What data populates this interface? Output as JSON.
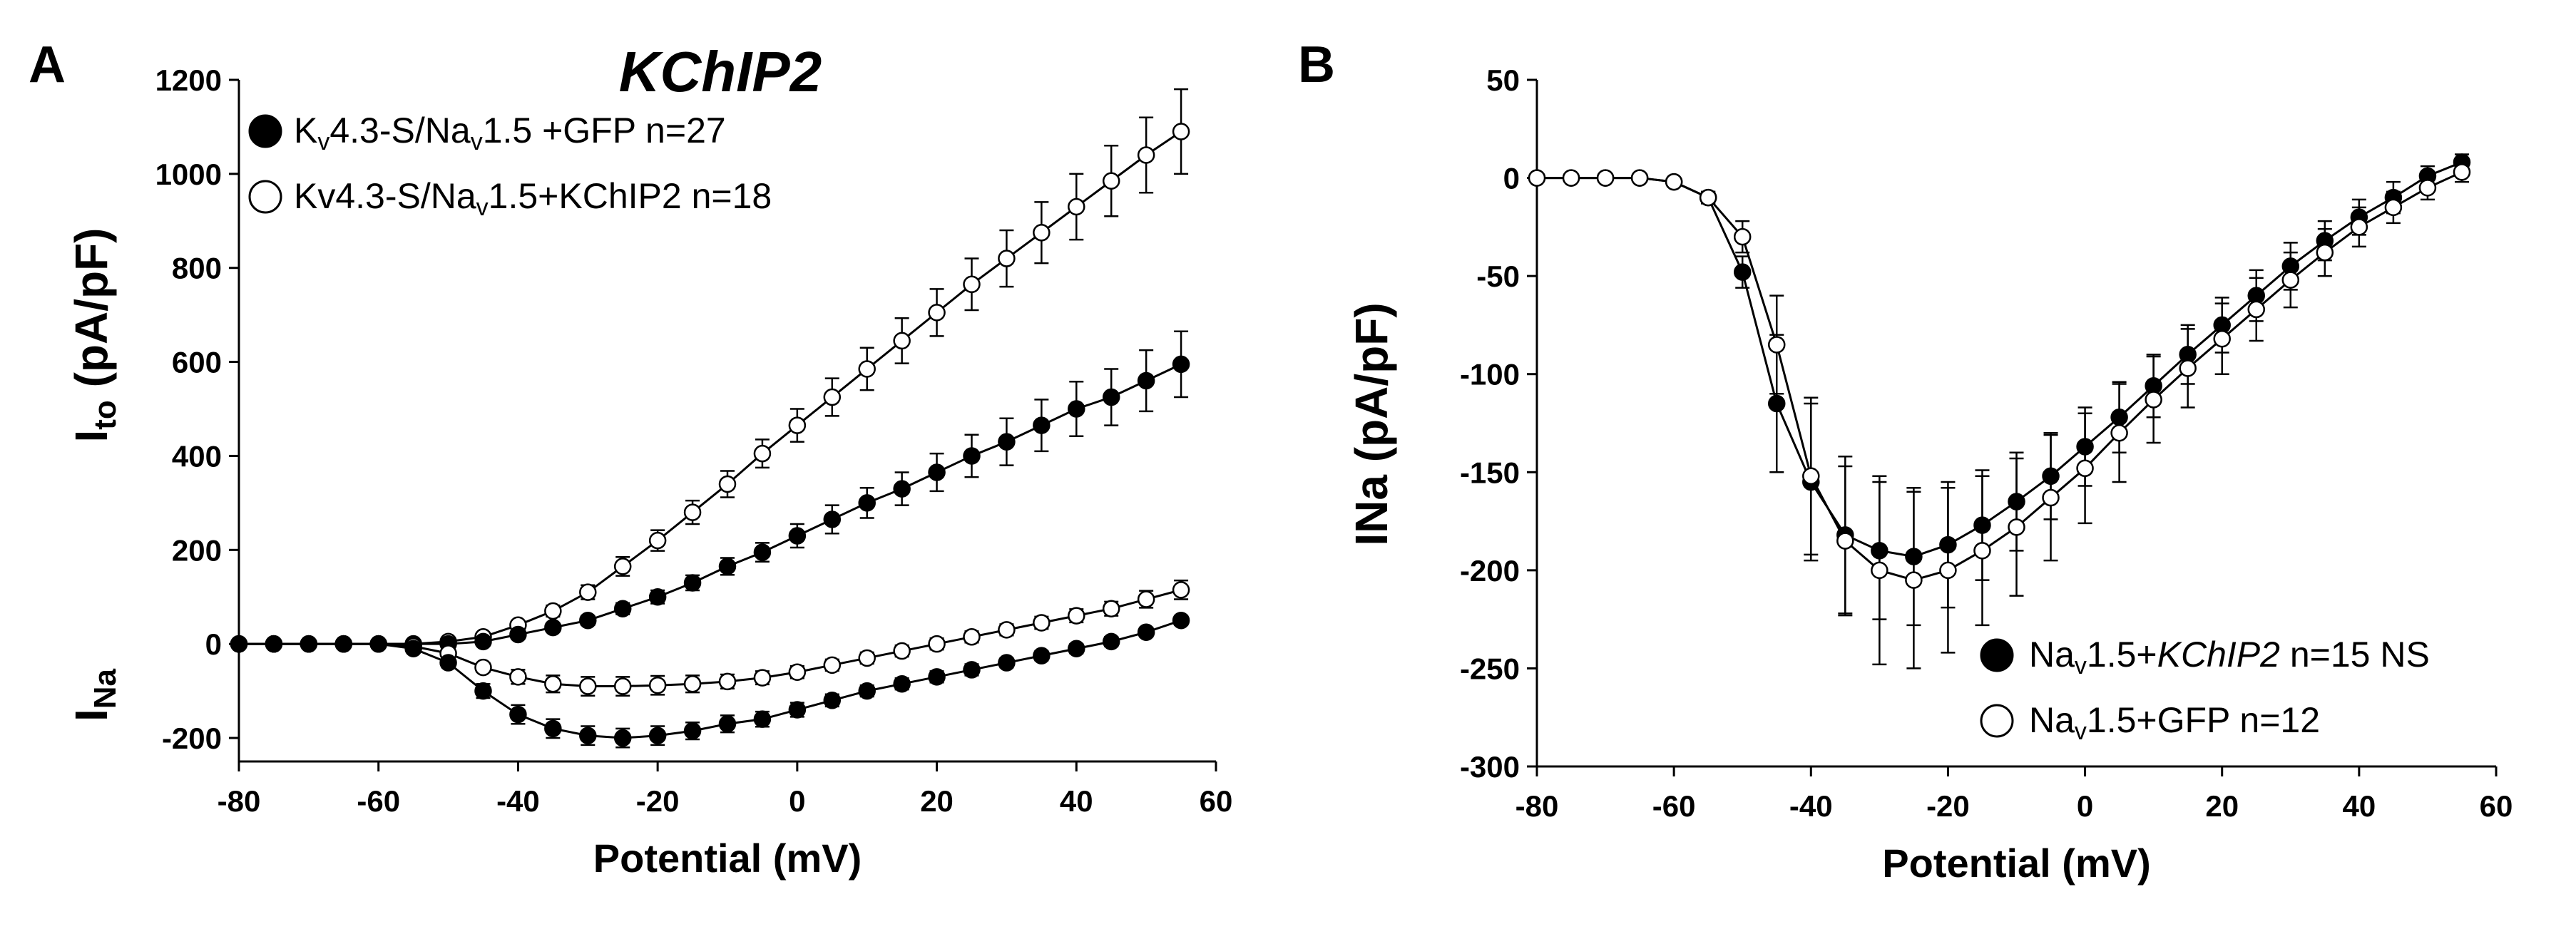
{
  "chart_data": [
    {
      "panel_label": "A",
      "type": "line",
      "title": "KChIP2",
      "xlabel": "Potential (mV)",
      "ylabel_main": "I",
      "ylabel_main_sub": "to",
      "ylabel_main_rest": " (pA/pF)",
      "ylabel_lower": "I",
      "ylabel_lower_sub": "Na",
      "xlim": [
        -80,
        60
      ],
      "ylim": [
        -250,
        1200
      ],
      "xticks": [
        -80,
        -60,
        -40,
        -20,
        0,
        20,
        40,
        60
      ],
      "yticks": [
        -200,
        0,
        200,
        400,
        600,
        800,
        1000,
        1200
      ],
      "legend": [
        {
          "marker": "filled",
          "text_pre": "K",
          "sub1": "v",
          "text_mid": "4.3-S/Na",
          "sub2": "v",
          "text_post": "1.5 +GFP n=27"
        },
        {
          "marker": "open",
          "text_pre": "Kv4.3-S/Na",
          "sub1": "v",
          "text_mid": "1.5+KChIP2 n=18",
          "sub2": "",
          "text_post": ""
        }
      ],
      "series": [
        {
          "id": "a-ito-kchip2",
          "marker": "open",
          "x": [
            -80,
            -75,
            -70,
            -65,
            -60,
            -55,
            -50,
            -45,
            -40,
            -35,
            -30,
            -25,
            -20,
            -15,
            -10,
            -5,
            0,
            5,
            10,
            15,
            20,
            25,
            30,
            35,
            40,
            45,
            50,
            55
          ],
          "y": [
            0,
            0,
            0,
            0,
            0,
            0,
            5,
            15,
            40,
            70,
            110,
            165,
            220,
            280,
            340,
            405,
            465,
            525,
            585,
            645,
            705,
            765,
            820,
            875,
            930,
            985,
            1040,
            1090
          ],
          "err": [
            0,
            0,
            0,
            0,
            0,
            0,
            4,
            6,
            8,
            12,
            15,
            20,
            22,
            25,
            28,
            30,
            35,
            40,
            45,
            48,
            50,
            55,
            60,
            65,
            70,
            75,
            80,
            90
          ]
        },
        {
          "id": "a-ito-gfp",
          "marker": "filled",
          "x": [
            -80,
            -75,
            -70,
            -65,
            -60,
            -55,
            -50,
            -45,
            -40,
            -35,
            -30,
            -25,
            -20,
            -15,
            -10,
            -5,
            0,
            5,
            10,
            15,
            20,
            25,
            30,
            35,
            40,
            45,
            50,
            55
          ],
          "y": [
            0,
            0,
            0,
            0,
            0,
            0,
            0,
            5,
            20,
            35,
            50,
            75,
            100,
            130,
            165,
            195,
            230,
            265,
            300,
            330,
            365,
            400,
            430,
            465,
            500,
            525,
            560,
            595
          ],
          "err": [
            0,
            0,
            0,
            0,
            0,
            0,
            3,
            5,
            6,
            8,
            10,
            12,
            14,
            16,
            18,
            20,
            25,
            30,
            32,
            35,
            40,
            45,
            50,
            55,
            58,
            60,
            65,
            70
          ]
        },
        {
          "id": "a-ina-kchip2",
          "marker": "open",
          "x": [
            -80,
            -75,
            -70,
            -65,
            -60,
            -55,
            -50,
            -45,
            -40,
            -35,
            -30,
            -25,
            -20,
            -15,
            -10,
            -5,
            0,
            5,
            10,
            15,
            20,
            25,
            30,
            35,
            40,
            45,
            50,
            55
          ],
          "y": [
            0,
            0,
            0,
            0,
            0,
            -5,
            -20,
            -50,
            -70,
            -85,
            -90,
            -90,
            -88,
            -85,
            -80,
            -72,
            -60,
            -45,
            -30,
            -15,
            0,
            15,
            30,
            45,
            60,
            75,
            95,
            115
          ],
          "err": [
            0,
            0,
            0,
            0,
            0,
            3,
            6,
            10,
            15,
            18,
            20,
            20,
            20,
            18,
            15,
            14,
            13,
            12,
            12,
            12,
            12,
            12,
            12,
            13,
            14,
            15,
            18,
            20
          ]
        },
        {
          "id": "a-ina-gfp",
          "marker": "filled",
          "x": [
            -80,
            -75,
            -70,
            -65,
            -60,
            -55,
            -50,
            -45,
            -40,
            -35,
            -30,
            -25,
            -20,
            -15,
            -10,
            -5,
            0,
            5,
            10,
            15,
            20,
            25,
            30,
            35,
            40,
            45,
            50,
            55
          ],
          "y": [
            0,
            0,
            0,
            0,
            0,
            -10,
            -40,
            -100,
            -150,
            -180,
            -195,
            -200,
            -195,
            -185,
            -170,
            -160,
            -140,
            -120,
            -100,
            -85,
            -70,
            -55,
            -40,
            -25,
            -10,
            5,
            25,
            50
          ],
          "err": [
            0,
            0,
            0,
            0,
            0,
            5,
            10,
            15,
            20,
            20,
            20,
            20,
            20,
            18,
            18,
            16,
            15,
            13,
            12,
            12,
            12,
            12,
            10,
            10,
            10,
            10,
            10,
            10
          ]
        }
      ]
    },
    {
      "panel_label": "B",
      "type": "line",
      "title": "",
      "xlabel": "Potential (mV)",
      "ylabel": "INa (pA/pF)",
      "xlim": [
        -80,
        60
      ],
      "ylim": [
        -300,
        50
      ],
      "xticks": [
        -80,
        -60,
        -40,
        -20,
        0,
        20,
        40,
        60
      ],
      "yticks": [
        -300,
        -250,
        -200,
        -150,
        -100,
        -50,
        0,
        50
      ],
      "legend": [
        {
          "marker": "filled",
          "text_pre": "Na",
          "sub1": "v",
          "text_mid": "1.5+",
          "italic": "KChIP2",
          "text_post": " n=15 NS"
        },
        {
          "marker": "open",
          "text_pre": "Na",
          "sub1": "v",
          "text_mid": "1.5+GFP n=12",
          "italic": "",
          "text_post": ""
        }
      ],
      "series": [
        {
          "id": "b-kchip2",
          "marker": "filled",
          "x": [
            -80,
            -75,
            -70,
            -65,
            -60,
            -55,
            -50,
            -45,
            -40,
            -35,
            -30,
            -25,
            -20,
            -15,
            -10,
            -5,
            0,
            5,
            10,
            15,
            20,
            25,
            30,
            35,
            40,
            45,
            50,
            55
          ],
          "y": [
            0,
            0,
            0,
            0,
            -2,
            -10,
            -48,
            -115,
            -155,
            -182,
            -190,
            -193,
            -187,
            -177,
            -165,
            -152,
            -137,
            -122,
            -106,
            -90,
            -75,
            -60,
            -45,
            -32,
            -20,
            -10,
            1,
            8
          ],
          "err": [
            0,
            0,
            0,
            0,
            2,
            3,
            8,
            35,
            40,
            40,
            35,
            35,
            32,
            28,
            25,
            22,
            20,
            18,
            16,
            15,
            14,
            13,
            12,
            10,
            9,
            8,
            5,
            4
          ]
        },
        {
          "id": "b-gfp",
          "marker": "open",
          "x": [
            -80,
            -75,
            -70,
            -65,
            -60,
            -55,
            -50,
            -45,
            -40,
            -35,
            -30,
            -25,
            -20,
            -15,
            -10,
            -5,
            0,
            5,
            10,
            15,
            20,
            25,
            30,
            35,
            40,
            45,
            50,
            55
          ],
          "y": [
            0,
            0,
            0,
            0,
            -2,
            -10,
            -30,
            -85,
            -152,
            -185,
            -200,
            -205,
            -200,
            -190,
            -178,
            -163,
            -148,
            -130,
            -113,
            -97,
            -82,
            -67,
            -52,
            -38,
            -25,
            -15,
            -5,
            3
          ],
          "err": [
            0,
            0,
            0,
            0,
            2,
            3,
            8,
            25,
            40,
            38,
            48,
            45,
            42,
            38,
            35,
            32,
            28,
            25,
            22,
            20,
            18,
            16,
            14,
            12,
            10,
            8,
            6,
            5
          ]
        }
      ]
    }
  ]
}
